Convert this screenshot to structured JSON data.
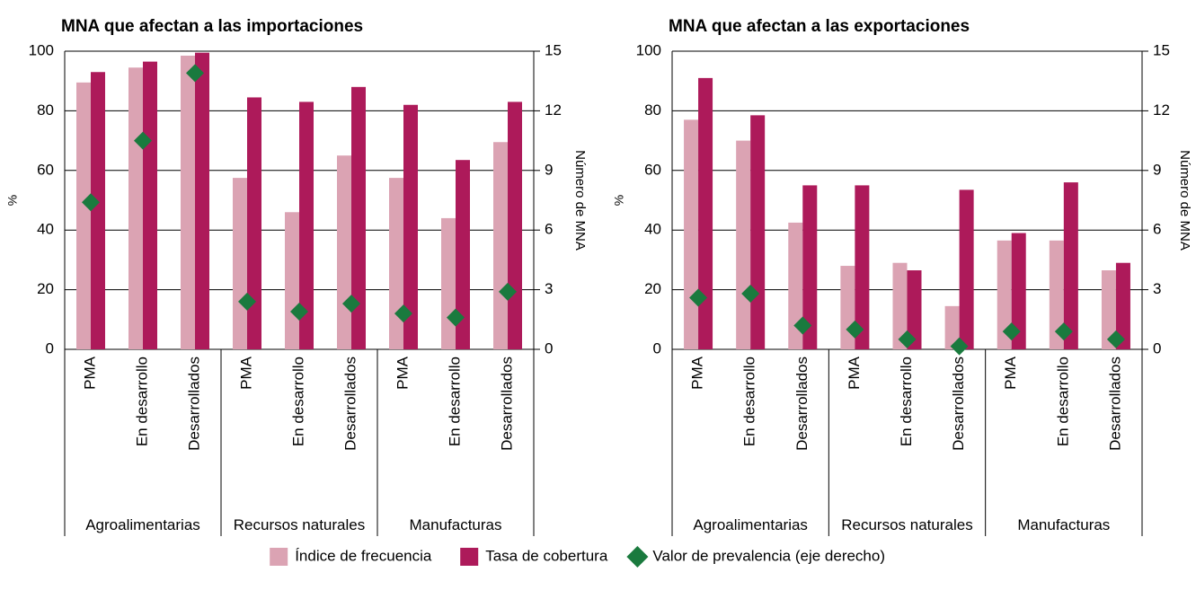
{
  "chart_data": [
    {
      "type": "bar",
      "title": "MNA que afectan a las importaciones",
      "ylabel": "%",
      "y2label": "Número de MNA",
      "groups": [
        {
          "name": "Agroalimentarias",
          "categories": [
            "PMA",
            "En desarrollo",
            "Desarrollados"
          ]
        },
        {
          "name": "Recursos naturales",
          "categories": [
            "PMA",
            "En desarrollo",
            "Desarrollados"
          ]
        },
        {
          "name": "Manufacturas",
          "categories": [
            "PMA",
            "En desarrollo",
            "Desarrollados"
          ]
        }
      ],
      "series": [
        {
          "name": "Índice de frecuencia",
          "color": "#dba3b3",
          "values": [
            89.5,
            94.5,
            98.5,
            57.5,
            46,
            65,
            57.5,
            44,
            69.5
          ]
        },
        {
          "name": "Tasa de cobertura",
          "color": "#ad1a5a",
          "values": [
            93,
            96.5,
            99.5,
            84.5,
            83,
            88,
            82,
            63.5,
            83
          ]
        },
        {
          "name": "Valor de prevalencia (eje derecho)",
          "color": "#1a7a3e",
          "axis": "y2",
          "marker": "diamond",
          "values": [
            7.4,
            10.5,
            13.9,
            2.4,
            1.9,
            2.3,
            1.8,
            1.6,
            2.9
          ]
        }
      ],
      "ylim": [
        0,
        100
      ],
      "yticks": [
        0,
        20,
        40,
        60,
        80,
        100
      ],
      "y2lim": [
        0,
        15
      ],
      "y2ticks": [
        0,
        3,
        6,
        9,
        12,
        15
      ],
      "grid": true
    },
    {
      "type": "bar",
      "title": "MNA que afectan a las exportaciones",
      "ylabel": "%",
      "y2label": "Número de MNA",
      "groups": [
        {
          "name": "Agroalimentarias",
          "categories": [
            "PMA",
            "En desarrollo",
            "Desarrollados"
          ]
        },
        {
          "name": "Recursos naturales",
          "categories": [
            "PMA",
            "En desarrollo",
            "Desarrollados"
          ]
        },
        {
          "name": "Manufacturas",
          "categories": [
            "PMA",
            "En desarrollo",
            "Desarrollados"
          ]
        }
      ],
      "series": [
        {
          "color": "#dba3b3",
          "values": [
            77,
            70,
            42.5,
            28,
            29,
            14.5,
            36.5,
            36.5,
            26.5
          ]
        },
        {
          "color": "#ad1a5a",
          "values": [
            91,
            78.5,
            55,
            55,
            26.5,
            53.5,
            39,
            56,
            29
          ]
        },
        {
          "color": "#1a7a3e",
          "axis": "y2",
          "marker": "diamond",
          "values": [
            2.6,
            2.8,
            1.2,
            1.0,
            0.5,
            0.15,
            0.9,
            0.9,
            0.5
          ]
        }
      ],
      "ylim": [
        0,
        100
      ],
      "yticks": [
        0,
        20,
        40,
        60,
        80,
        100
      ],
      "y2lim": [
        0,
        15
      ],
      "y2ticks": [
        0,
        3,
        6,
        9,
        12,
        15
      ],
      "grid": true
    }
  ]
}
